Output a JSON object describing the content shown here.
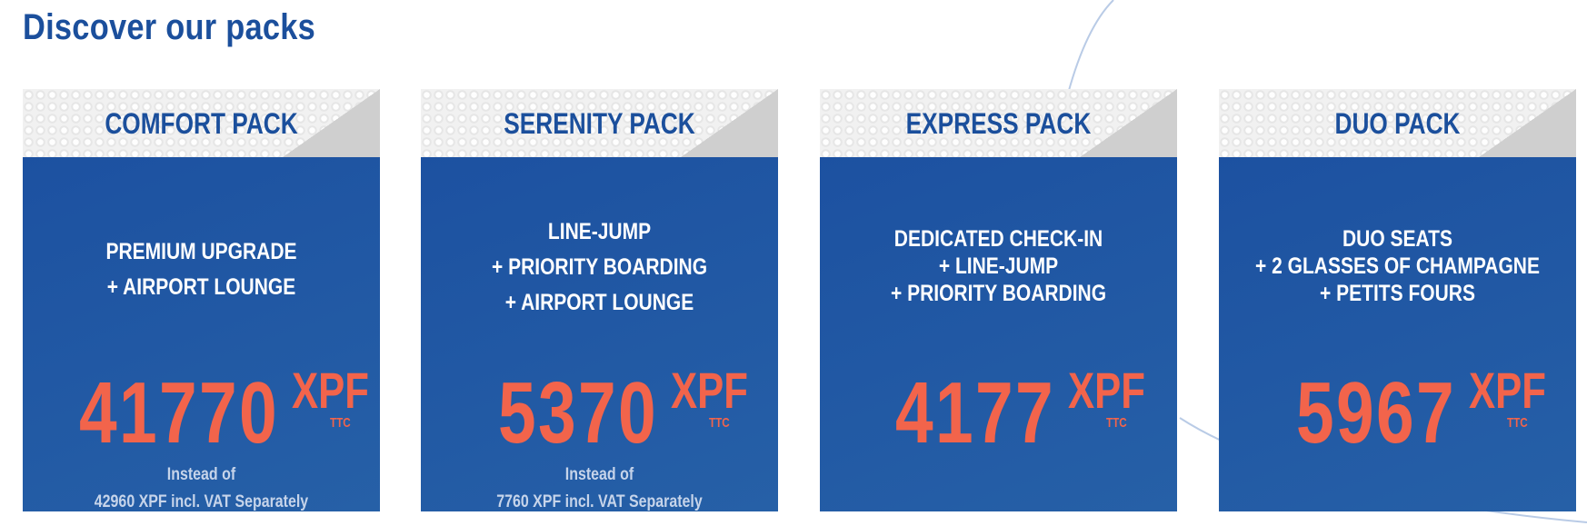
{
  "page": {
    "title": "Discover our packs"
  },
  "colors": {
    "title_blue": "#1b4f9c",
    "card_blue": "#1f56a3",
    "price_orange": "#f2644b",
    "header_grey": "#f1f1f1"
  },
  "packs": [
    {
      "name": "COMFORT PACK",
      "features": [
        "PREMIUM UPGRADE",
        "+ AIRPORT LOUNGE"
      ],
      "price": "41770",
      "currency": "XPF",
      "tax_label": "TTC",
      "instead_label": "Instead of",
      "instead_value": "42960 XPF incl. VAT Separately"
    },
    {
      "name": "SERENITY PACK",
      "features": [
        "LINE-JUMP",
        "+ PRIORITY BOARDING",
        "+ AIRPORT LOUNGE"
      ],
      "price": "5370",
      "currency": "XPF",
      "tax_label": "TTC",
      "instead_label": "Instead of",
      "instead_value": "7760 XPF incl. VAT Separately"
    },
    {
      "name": "EXPRESS PACK",
      "features": [
        "DEDICATED CHECK-IN",
        "+ LINE-JUMP",
        "+ PRIORITY BOARDING"
      ],
      "price": "4177",
      "currency": "XPF",
      "tax_label": "TTC"
    },
    {
      "name": "DUO PACK",
      "features": [
        "DUO SEATS",
        "+ 2 GLASSES OF CHAMPAGNE",
        "+ PETITS FOURS"
      ],
      "price": "5967",
      "currency": "XPF",
      "tax_label": "TTC"
    }
  ]
}
